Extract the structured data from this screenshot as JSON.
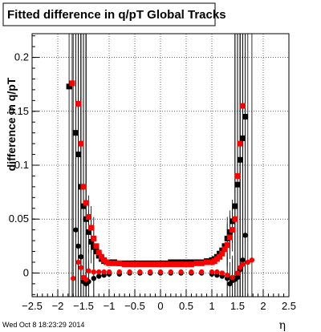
{
  "chart_data": {
    "type": "scatter",
    "title": "Fitted difference in q/pT  Global Tracks",
    "ylabel": "difference in q/pT",
    "xlabel": "η",
    "footer": "Wed Oct  8 18:23:29 2014",
    "xlim": [
      -2.5,
      2.5
    ],
    "ylim": [
      -0.022,
      0.222
    ],
    "grid": true,
    "x_ticks": [
      -2.5,
      -2,
      -1.5,
      -1,
      -0.5,
      0,
      0.5,
      1,
      1.5,
      2,
      2.5
    ],
    "x_tick_labels": [
      "−2.5",
      "−2",
      "−1.5",
      "−1",
      "−0.5",
      "0",
      "0.5",
      "1",
      "1.5",
      "2",
      "2.5"
    ],
    "y_ticks": [
      0,
      0.05,
      0.1,
      0.15,
      0.2
    ],
    "y_tick_labels": [
      "0",
      "0.05",
      "0.1",
      "0.15",
      "0.2"
    ],
    "colors": {
      "series_a": "#000000",
      "series_b": "#ff0000"
    },
    "series": [
      {
        "marker": "square",
        "color": "#000000",
        "x": [
          -1.78,
          -1.65,
          -1.6,
          -1.55,
          -1.5,
          -1.45,
          -1.4,
          -1.35,
          -1.3,
          -1.25,
          -1.2,
          -1.15,
          -1.1,
          -1.05,
          -1.0,
          -0.9,
          -0.8,
          -0.7,
          -0.6,
          -0.5,
          -0.4,
          -0.3,
          -0.2,
          -0.1,
          0.0,
          0.1,
          0.2,
          0.3,
          0.4,
          0.5,
          0.6,
          0.7,
          0.8,
          0.9,
          1.0,
          1.05,
          1.1,
          1.15,
          1.2,
          1.25,
          1.3,
          1.35,
          1.4,
          1.45,
          1.5,
          1.55,
          1.6,
          1.65
        ],
        "y": [
          0.173,
          0.13,
          0.11,
          0.08,
          0.062,
          0.05,
          0.038,
          0.029,
          0.024,
          0.02,
          0.016,
          0.013,
          0.011,
          0.01,
          0.01,
          0.01,
          0.009,
          0.009,
          0.009,
          0.009,
          0.009,
          0.009,
          0.009,
          0.009,
          0.009,
          0.009,
          0.01,
          0.01,
          0.01,
          0.01,
          0.01,
          0.01,
          0.01,
          0.011,
          0.012,
          0.013,
          0.015,
          0.018,
          0.021,
          0.025,
          0.032,
          0.038,
          0.048,
          0.062,
          0.082,
          0.105,
          0.125,
          0.145
        ]
      },
      {
        "marker": "square",
        "color": "#ff0000",
        "x": [
          -1.72,
          -1.6,
          -1.55,
          -1.5,
          -1.45,
          -1.4,
          -1.35,
          -1.3,
          -1.25,
          -1.2,
          -1.15,
          -1.1,
          -1.05,
          -1.0,
          -0.9,
          -0.8,
          -0.7,
          -0.6,
          -0.5,
          -0.4,
          -0.3,
          -0.2,
          -0.1,
          0.0,
          0.1,
          0.2,
          0.3,
          0.4,
          0.5,
          0.6,
          0.7,
          0.8,
          0.9,
          1.0,
          1.05,
          1.1,
          1.15,
          1.2,
          1.25,
          1.3,
          1.35,
          1.4,
          1.45,
          1.5,
          1.55,
          1.6
        ],
        "y": [
          0.176,
          0.157,
          0.12,
          0.08,
          0.065,
          0.052,
          0.042,
          0.032,
          0.025,
          0.019,
          0.015,
          0.012,
          0.01,
          0.009,
          0.009,
          0.009,
          0.008,
          0.008,
          0.008,
          0.008,
          0.008,
          0.008,
          0.008,
          0.008,
          0.008,
          0.008,
          0.008,
          0.008,
          0.008,
          0.008,
          0.009,
          0.009,
          0.01,
          0.01,
          0.011,
          0.013,
          0.015,
          0.018,
          0.022,
          0.026,
          0.033,
          0.04,
          0.05,
          0.09,
          0.12,
          0.155
        ]
      },
      {
        "marker": "circle",
        "color": "#000000",
        "x": [
          -1.65,
          -1.6,
          -1.55,
          -1.5,
          -1.45,
          -1.4,
          -1.3,
          -1.2,
          -1.1,
          -1.0,
          -0.8,
          -0.6,
          -0.4,
          -0.2,
          0.0,
          0.2,
          0.4,
          0.6,
          0.8,
          1.0,
          1.1,
          1.2,
          1.3,
          1.35,
          1.4,
          1.45,
          1.5,
          1.55,
          1.6,
          1.65
        ],
        "y": [
          0.04,
          0.025,
          0.015,
          -0.008,
          -0.01,
          -0.008,
          -0.005,
          -0.003,
          -0.002,
          -0.001,
          -0.001,
          0.0,
          0.0,
          0.0,
          0.0,
          0.0,
          0.0,
          0.0,
          0.0,
          -0.001,
          -0.002,
          -0.003,
          -0.005,
          -0.01,
          -0.007,
          -0.006,
          -0.004,
          0.003,
          0.012,
          0.035
        ]
      },
      {
        "marker": "circle",
        "color": "#ff0000",
        "x": [
          -1.7,
          -1.6,
          -1.55,
          -1.5,
          -1.45,
          -1.4,
          -1.3,
          -1.2,
          -1.1,
          -1.0,
          -0.8,
          -0.6,
          -0.4,
          -0.2,
          0.0,
          0.2,
          0.4,
          0.6,
          0.8,
          1.0,
          1.1,
          1.2,
          1.3,
          1.4,
          1.5,
          1.55,
          1.6,
          1.7,
          1.78
        ],
        "y": [
          -0.005,
          0.01,
          0.005,
          -0.004,
          -0.006,
          0.002,
          0.001,
          0.001,
          0.001,
          0.001,
          0.001,
          0.001,
          0.001,
          0.001,
          0.001,
          0.001,
          0.001,
          0.001,
          0.001,
          0.001,
          0.001,
          0.0,
          -0.002,
          -0.004,
          0.0,
          0.005,
          0.008,
          0.01,
          0.012
        ]
      }
    ]
  }
}
